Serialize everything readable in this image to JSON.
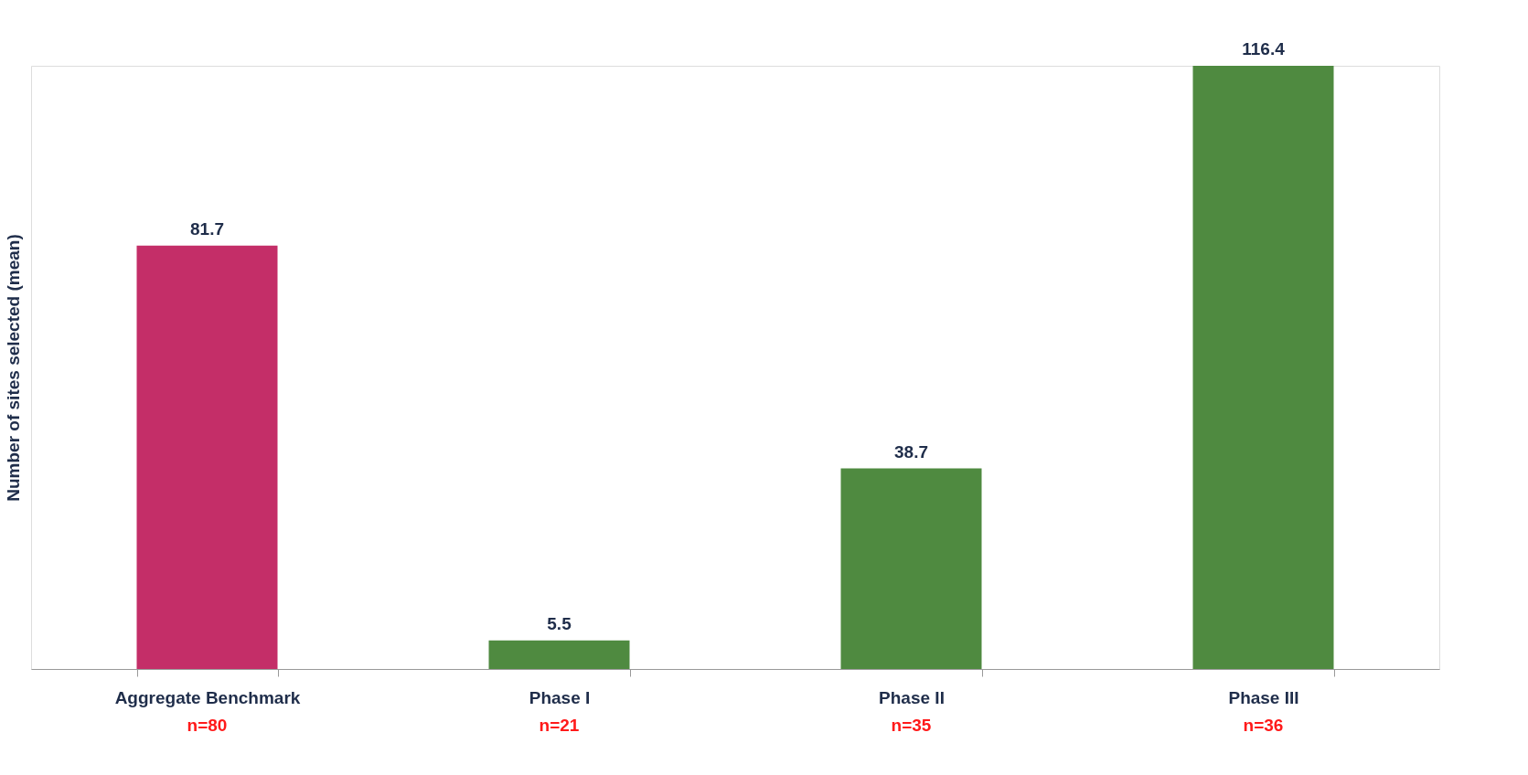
{
  "chart_data": {
    "type": "bar",
    "ylabel": "Number of sites selected (mean)",
    "categories": [
      "Aggregate Benchmark",
      "Phase I",
      "Phase II",
      "Phase III"
    ],
    "values": [
      81.7,
      5.5,
      38.7,
      116.4
    ],
    "colors": [
      "#c42e68",
      "#4f8a40",
      "#4f8a40",
      "#4f8a40"
    ],
    "data_labels": true,
    "grid": false,
    "annotations": [
      "n=80",
      "n=21",
      "n=35",
      "n=36"
    ]
  }
}
